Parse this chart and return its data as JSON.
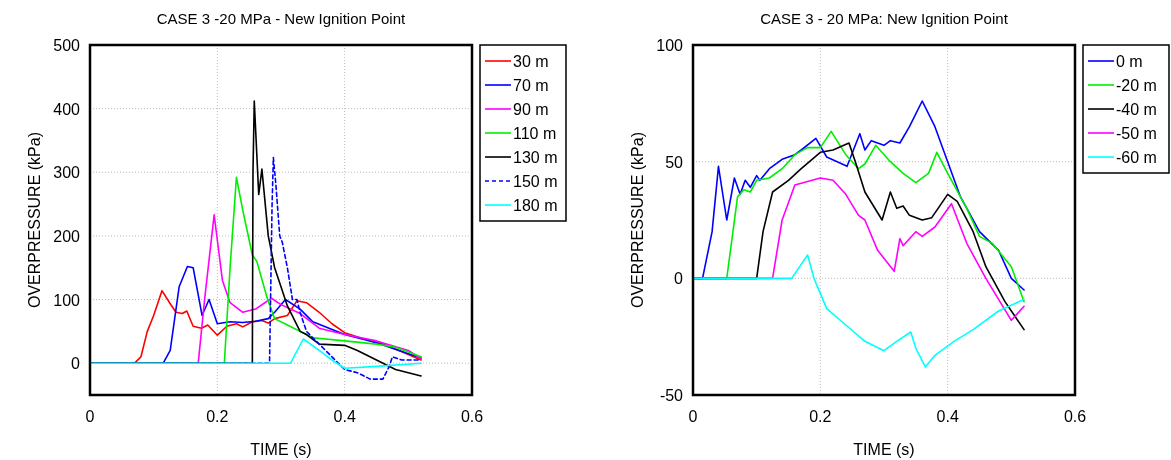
{
  "chart_data": [
    {
      "type": "line",
      "title": "CASE 3 -20 MPa - New Ignition Point",
      "xlabel": "TIME (s)",
      "ylabel": "OVERPRESSURE (kPa)",
      "xlim": [
        0,
        0.6
      ],
      "xticks": [
        0,
        0.2,
        0.4,
        0.6
      ],
      "ylim": [
        -50,
        500
      ],
      "yticks": [
        0,
        100,
        200,
        300,
        400,
        500
      ],
      "grid": true,
      "legend": "top right",
      "line_style": "solid",
      "series": [
        {
          "name": "30 m",
          "color": "#ff0000",
          "x": [
            0,
            0.07,
            0.08,
            0.09,
            0.1,
            0.113,
            0.125,
            0.135,
            0.145,
            0.152,
            0.162,
            0.175,
            0.185,
            0.2,
            0.215,
            0.23,
            0.24,
            0.255,
            0.27,
            0.28,
            0.29,
            0.31,
            0.325,
            0.34,
            0.36,
            0.38,
            0.4,
            0.43,
            0.46,
            0.49,
            0.52
          ],
          "values": [
            0,
            0,
            10,
            50,
            75,
            114,
            95,
            80,
            78,
            82,
            58,
            55,
            60,
            44,
            58,
            62,
            57,
            65,
            67,
            63,
            70,
            75,
            98,
            95,
            80,
            62,
            48,
            38,
            30,
            18,
            5
          ]
        },
        {
          "name": "70 m",
          "color": "#0000ff",
          "x": [
            0,
            0.115,
            0.126,
            0.14,
            0.153,
            0.162,
            0.176,
            0.187,
            0.2,
            0.22,
            0.24,
            0.26,
            0.28,
            0.29,
            0.307,
            0.33,
            0.35,
            0.4,
            0.45,
            0.5,
            0.52
          ],
          "values": [
            0,
            0,
            20,
            120,
            152,
            150,
            75,
            100,
            62,
            65,
            64,
            66,
            70,
            80,
            100,
            85,
            65,
            45,
            32,
            15,
            8
          ]
        },
        {
          "name": "90 m",
          "color": "#ff00ff",
          "x": [
            0,
            0.17,
            0.18,
            0.195,
            0.208,
            0.22,
            0.24,
            0.26,
            0.285,
            0.3,
            0.33,
            0.36,
            0.4,
            0.45,
            0.5,
            0.52
          ],
          "values": [
            0,
            0,
            100,
            233,
            130,
            95,
            80,
            85,
            102,
            92,
            78,
            55,
            45,
            35,
            20,
            7
          ]
        },
        {
          "name": "110 m",
          "color": "#00ee00",
          "x": [
            0,
            0.211,
            0.22,
            0.23,
            0.24,
            0.255,
            0.262,
            0.279,
            0.29,
            0.31,
            0.33,
            0.35,
            0.4,
            0.45,
            0.48,
            0.52
          ],
          "values": [
            0,
            0,
            150,
            292,
            240,
            170,
            160,
            100,
            70,
            60,
            50,
            40,
            35,
            30,
            25,
            10
          ]
        },
        {
          "name": "130 m",
          "color": "#000000",
          "x": [
            0,
            0.255,
            0.256,
            0.258,
            0.265,
            0.27,
            0.28,
            0.29,
            0.3,
            0.31,
            0.32,
            0.33,
            0.34,
            0.36,
            0.4,
            0.42,
            0.45,
            0.48,
            0.52
          ],
          "values": [
            0,
            0,
            300,
            412,
            265,
            305,
            200,
            150,
            120,
            90,
            70,
            50,
            45,
            30,
            28,
            20,
            5,
            -10,
            -20
          ]
        },
        {
          "name": "150 m",
          "color": "#0000ff",
          "line_style": "dashed",
          "x": [
            0,
            0.282,
            0.286,
            0.288,
            0.292,
            0.298,
            0.302,
            0.31,
            0.318,
            0.325,
            0.33,
            0.34,
            0.36,
            0.38,
            0.4,
            0.42,
            0.44,
            0.46,
            0.47,
            0.475,
            0.49,
            0.52
          ],
          "values": [
            0,
            0,
            250,
            323,
            280,
            200,
            190,
            150,
            100,
            100,
            80,
            50,
            30,
            10,
            -10,
            -15,
            -25,
            -25,
            -5,
            10,
            5,
            5
          ]
        },
        {
          "name": "180 m",
          "color": "#00ffff",
          "x": [
            0,
            0.315,
            0.335,
            0.36,
            0.38,
            0.4,
            0.45,
            0.52
          ],
          "values": [
            0,
            0,
            38,
            20,
            5,
            -8,
            -5,
            0
          ]
        }
      ]
    },
    {
      "type": "line",
      "title": "CASE 3 - 20 MPa: New Ignition Point",
      "xlabel": "TIME (s)",
      "ylabel": "OVERPRESSURE (kPa)",
      "xlim": [
        0,
        0.6
      ],
      "xticks": [
        0,
        0.2,
        0.4,
        0.6
      ],
      "ylim": [
        -50,
        100
      ],
      "yticks": [
        -50,
        0,
        50,
        100
      ],
      "grid": true,
      "legend": "top right",
      "line_style": "solid",
      "series": [
        {
          "name": "0 m",
          "color": "#0000ff",
          "x": [
            0,
            0.015,
            0.03,
            0.04,
            0.053,
            0.065,
            0.074,
            0.082,
            0.09,
            0.1,
            0.105,
            0.12,
            0.14,
            0.16,
            0.17,
            0.193,
            0.21,
            0.242,
            0.262,
            0.27,
            0.28,
            0.3,
            0.31,
            0.325,
            0.34,
            0.36,
            0.38,
            0.4,
            0.42,
            0.45,
            0.48,
            0.5,
            0.52
          ],
          "values": [
            0,
            0,
            20,
            48,
            25,
            43,
            36,
            42,
            39,
            44,
            42,
            47,
            51,
            53,
            55,
            60,
            52,
            48,
            62,
            55,
            59,
            57,
            59,
            58,
            65,
            76,
            65,
            50,
            35,
            20,
            12,
            0,
            -5
          ]
        },
        {
          "name": "-20 m",
          "color": "#00ee00",
          "x": [
            0,
            0.053,
            0.07,
            0.08,
            0.09,
            0.1,
            0.12,
            0.14,
            0.16,
            0.18,
            0.2,
            0.217,
            0.24,
            0.26,
            0.27,
            0.287,
            0.31,
            0.33,
            0.35,
            0.37,
            0.383,
            0.4,
            0.43,
            0.45,
            0.47,
            0.5,
            0.52
          ],
          "values": [
            0,
            0,
            35,
            38,
            37,
            42,
            43,
            47,
            53,
            56,
            56,
            63,
            53,
            47,
            49,
            57,
            50,
            45,
            41,
            45,
            54,
            45,
            30,
            18,
            15,
            5,
            -10
          ]
        },
        {
          "name": "-40 m",
          "color": "#000000",
          "x": [
            0,
            0.1,
            0.11,
            0.125,
            0.15,
            0.17,
            0.2,
            0.22,
            0.245,
            0.255,
            0.27,
            0.297,
            0.31,
            0.32,
            0.33,
            0.34,
            0.36,
            0.375,
            0.4,
            0.415,
            0.44,
            0.46,
            0.49,
            0.52
          ],
          "values": [
            0,
            0,
            20,
            37,
            42,
            47,
            54,
            55,
            58,
            50,
            37,
            25,
            37,
            30,
            31,
            27,
            25,
            26,
            36,
            33,
            20,
            5,
            -10,
            -22
          ]
        },
        {
          "name": "-50 m",
          "color": "#ff00ff",
          "x": [
            0,
            0.125,
            0.14,
            0.16,
            0.2,
            0.22,
            0.24,
            0.26,
            0.27,
            0.29,
            0.316,
            0.325,
            0.33,
            0.35,
            0.36,
            0.38,
            0.406,
            0.43,
            0.46,
            0.5,
            0.52
          ],
          "values": [
            0,
            0,
            25,
            40,
            43,
            42,
            36,
            27,
            25,
            12,
            3,
            17,
            14,
            20,
            18,
            22,
            32,
            15,
            0,
            -18,
            -12
          ]
        },
        {
          "name": "-60 m",
          "color": "#00ffff",
          "x": [
            0,
            0.155,
            0.18,
            0.19,
            0.21,
            0.24,
            0.27,
            0.3,
            0.32,
            0.342,
            0.35,
            0.365,
            0.38,
            0.41,
            0.44,
            0.48,
            0.52
          ],
          "values": [
            0,
            0,
            10,
            0,
            -13,
            -20,
            -27,
            -31,
            -27,
            -23,
            -30,
            -38,
            -33,
            -27,
            -22,
            -14,
            -9
          ]
        }
      ]
    }
  ]
}
